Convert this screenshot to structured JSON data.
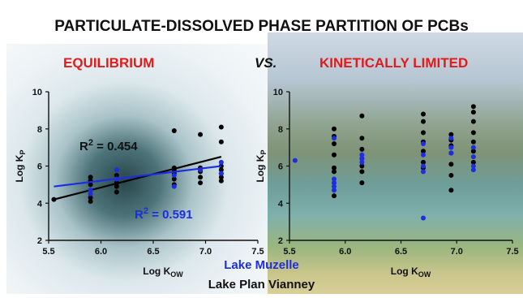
{
  "slide": {
    "title": "PARTICULATE-DISSOLVED PHASE PARTITION OF PCBs",
    "left_heading": "EQUILIBRIUM",
    "versus": "VS.",
    "right_heading": "KINETICALLY LIMITED",
    "r2_black_prefix": "R",
    "r2_sup": "2",
    "r2_black_value": " = 0.454",
    "r2_blue_prefix": "R",
    "r2_blue_value": " = 0.591",
    "legend_blue": "Lake Muzelle",
    "legend_black": "Lake Plan Vianney",
    "colors": {
      "heading_red": "#e21a1a",
      "series_black": "#000000",
      "series_blue": "#1e2de0"
    }
  },
  "chart_data": [
    {
      "type": "scatter",
      "xlabel": "Log K",
      "xlabel_sub": "OW",
      "ylabel": "Log K",
      "ylabel_sub": "P",
      "xlim": [
        5.5,
        7.5
      ],
      "ylim": [
        2,
        10
      ],
      "x_ticks": [
        "5.5",
        "6.0",
        "6.5",
        "7.0",
        "7.5"
      ],
      "y_ticks": [
        "2",
        "4",
        "6",
        "8",
        "10"
      ],
      "series": [
        {
          "name": "Lake Plan Vianney",
          "color": "#000000",
          "points": [
            [
              5.55,
              4.2
            ],
            [
              5.9,
              4.1
            ],
            [
              5.9,
              4.3
            ],
            [
              5.9,
              4.7
            ],
            [
              5.9,
              5.0
            ],
            [
              5.9,
              5.2
            ],
            [
              5.9,
              5.4
            ],
            [
              6.15,
              4.6
            ],
            [
              6.15,
              4.9
            ],
            [
              6.15,
              5.1
            ],
            [
              6.15,
              5.5
            ],
            [
              6.7,
              5.0
            ],
            [
              6.7,
              5.3
            ],
            [
              6.7,
              5.6
            ],
            [
              6.7,
              5.8
            ],
            [
              6.7,
              5.9
            ],
            [
              6.7,
              7.9
            ],
            [
              6.95,
              5.1
            ],
            [
              6.95,
              5.4
            ],
            [
              6.95,
              5.7
            ],
            [
              6.95,
              5.9
            ],
            [
              6.95,
              7.7
            ],
            [
              7.15,
              5.2
            ],
            [
              7.15,
              5.4
            ],
            [
              7.15,
              5.6
            ],
            [
              7.15,
              5.8
            ],
            [
              7.15,
              6.0
            ],
            [
              7.15,
              7.3
            ],
            [
              7.15,
              8.1
            ]
          ],
          "trend": {
            "x": [
              5.55,
              7.15
            ],
            "y": [
              4.2,
              6.5
            ],
            "r2": 0.454
          }
        },
        {
          "name": "Lake Muzelle",
          "color": "#1e2de0",
          "points": [
            [
              5.9,
              4.5
            ],
            [
              5.9,
              4.7
            ],
            [
              6.15,
              5.8
            ],
            [
              6.15,
              5.3
            ],
            [
              6.7,
              4.9
            ],
            [
              6.7,
              5.5
            ],
            [
              6.95,
              5.8
            ],
            [
              7.15,
              5.6
            ],
            [
              7.15,
              6.2
            ]
          ],
          "trend": {
            "x": [
              5.55,
              7.15
            ],
            "y": [
              4.9,
              6.0
            ],
            "r2": 0.591
          }
        }
      ]
    },
    {
      "type": "scatter",
      "xlabel": "Log K",
      "xlabel_sub": "OW",
      "ylabel": "Log K",
      "ylabel_sub": "P",
      "xlim": [
        5.5,
        7.5
      ],
      "ylim": [
        2,
        10
      ],
      "x_ticks": [
        "5.5",
        "6.0",
        "6.5",
        "7.0",
        "7.5"
      ],
      "y_ticks": [
        "2",
        "4",
        "6",
        "8",
        "10"
      ],
      "series": [
        {
          "name": "Lake Plan Vianney",
          "color": "#000000",
          "points": [
            [
              5.9,
              4.4
            ],
            [
              5.9,
              5.7
            ],
            [
              5.9,
              5.9
            ],
            [
              5.9,
              6.6
            ],
            [
              5.9,
              7.2
            ],
            [
              5.9,
              7.6
            ],
            [
              5.9,
              8.0
            ],
            [
              6.15,
              5.1
            ],
            [
              6.15,
              5.7
            ],
            [
              6.15,
              6.0
            ],
            [
              6.15,
              6.4
            ],
            [
              6.15,
              6.9
            ],
            [
              6.15,
              7.5
            ],
            [
              6.15,
              8.7
            ],
            [
              6.7,
              5.9
            ],
            [
              6.7,
              6.2
            ],
            [
              6.7,
              6.8
            ],
            [
              6.7,
              7.3
            ],
            [
              6.7,
              7.8
            ],
            [
              6.7,
              8.4
            ],
            [
              6.7,
              8.8
            ],
            [
              6.95,
              4.7
            ],
            [
              6.95,
              5.5
            ],
            [
              6.95,
              6.1
            ],
            [
              6.95,
              6.7
            ],
            [
              6.95,
              7.1
            ],
            [
              6.95,
              7.4
            ],
            [
              6.95,
              7.7
            ],
            [
              7.15,
              6.2
            ],
            [
              7.15,
              6.8
            ],
            [
              7.15,
              7.3
            ],
            [
              7.15,
              7.8
            ],
            [
              7.15,
              8.4
            ],
            [
              7.15,
              8.9
            ],
            [
              7.15,
              9.2
            ]
          ],
          "trend": null
        },
        {
          "name": "Lake Muzelle",
          "color": "#1e2de0",
          "points": [
            [
              5.55,
              6.3
            ],
            [
              5.9,
              4.7
            ],
            [
              5.9,
              4.9
            ],
            [
              5.9,
              5.1
            ],
            [
              5.9,
              5.3
            ],
            [
              5.9,
              7.5
            ],
            [
              6.15,
              6.2
            ],
            [
              6.15,
              6.4
            ],
            [
              6.15,
              6.6
            ],
            [
              6.7,
              3.2
            ],
            [
              6.7,
              5.7
            ],
            [
              6.7,
              6.0
            ],
            [
              6.7,
              6.6
            ],
            [
              6.7,
              7.2
            ],
            [
              6.95,
              6.7
            ],
            [
              6.95,
              7.0
            ],
            [
              6.95,
              7.5
            ],
            [
              7.15,
              5.8
            ],
            [
              7.15,
              6.0
            ],
            [
              7.15,
              6.5
            ],
            [
              7.15,
              7.0
            ]
          ],
          "trend": null
        }
      ]
    }
  ]
}
